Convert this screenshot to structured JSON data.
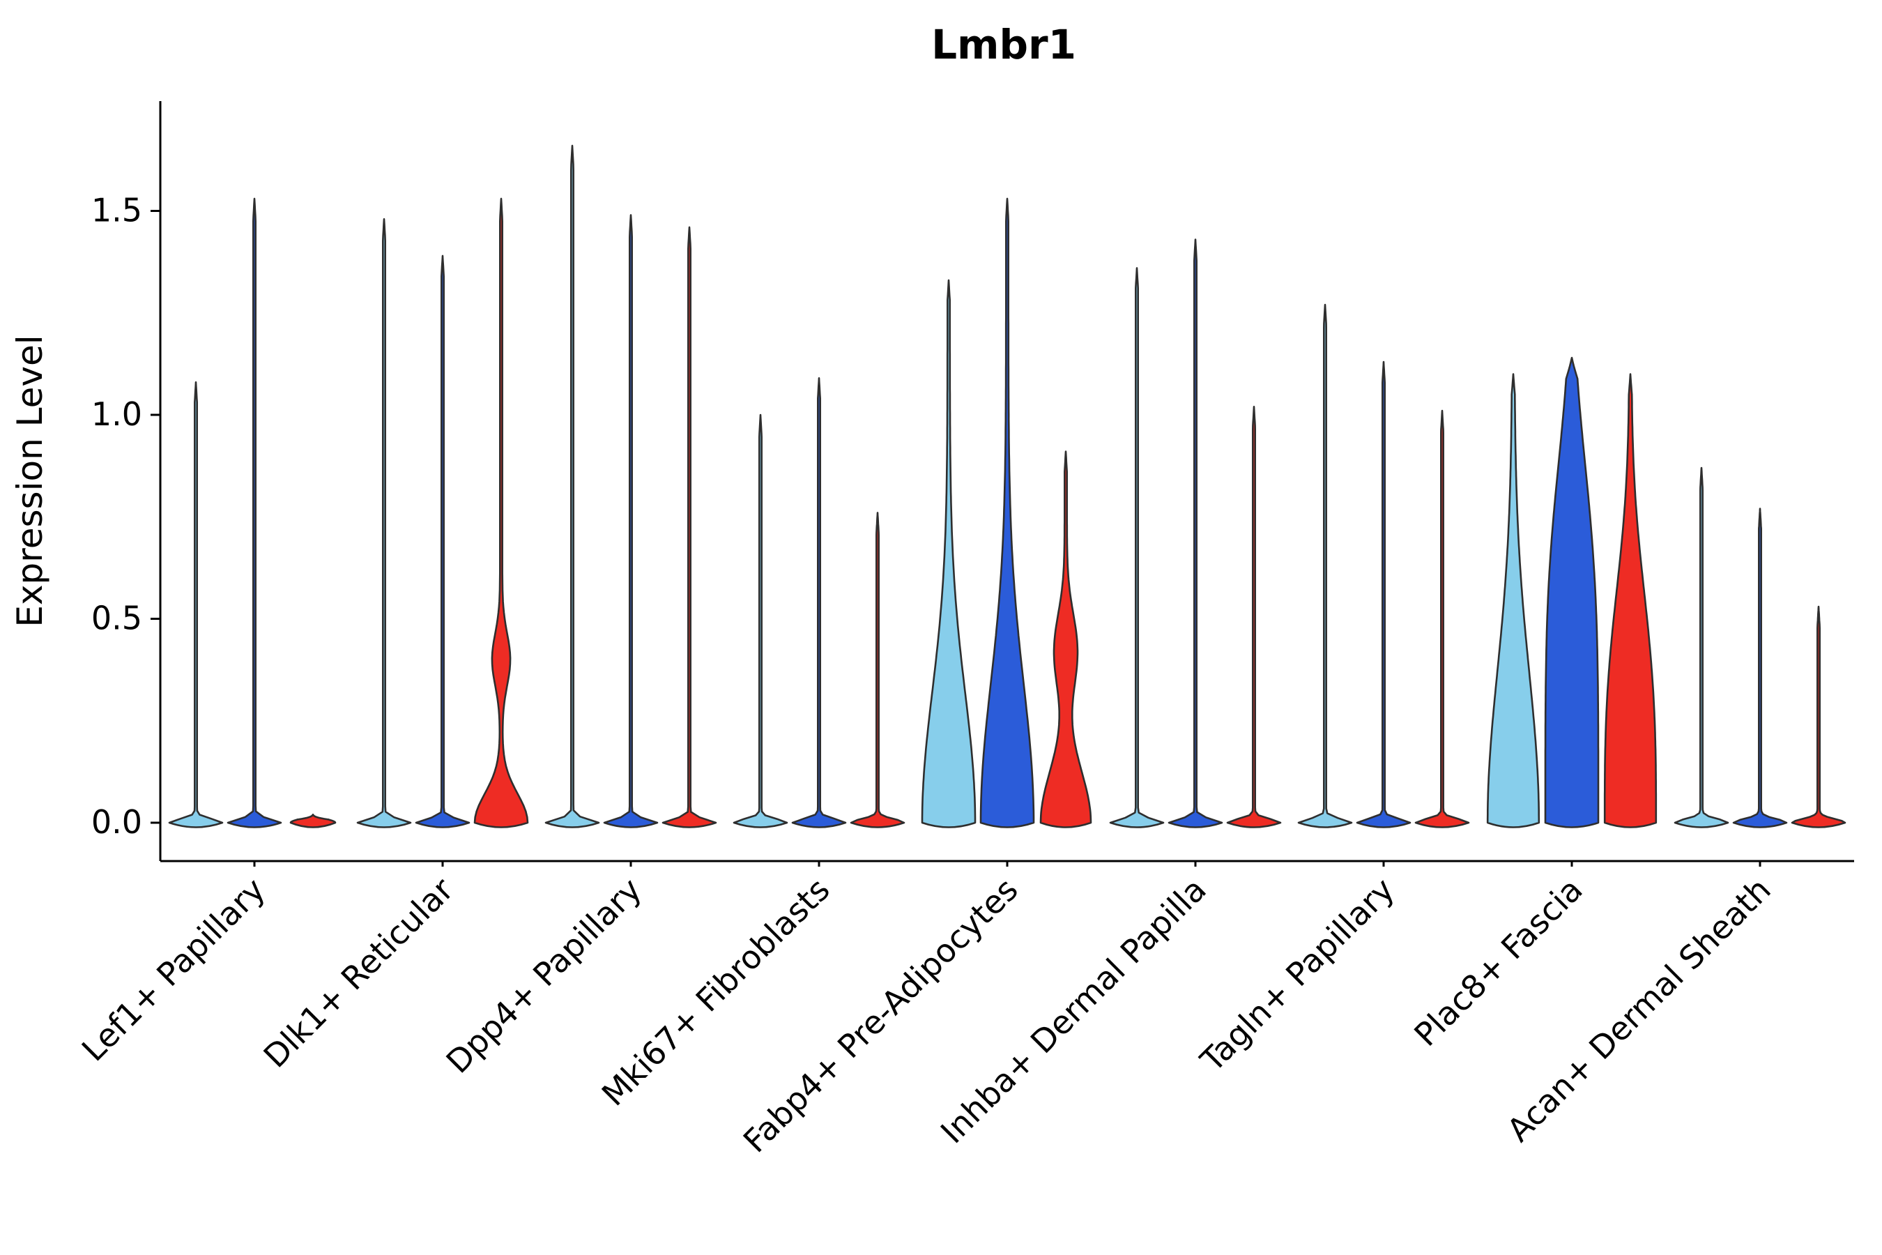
{
  "chart_data": {
    "type": "violin",
    "title": "Lmbr1",
    "ylabel": "Expression Level",
    "xlabel": "",
    "yticks": [
      "0.0",
      "0.5",
      "1.0",
      "1.5"
    ],
    "ytick_values": [
      0,
      0.5,
      1,
      1.5
    ],
    "ylim": [
      -0.07,
      1.77
    ],
    "grid": false,
    "legend": "none",
    "group_colors": [
      "#87CEEB",
      "#2B5CD9",
      "#EE2C24"
    ],
    "outline_color": "#2E2E2E",
    "spine_color": "#000000",
    "categories": [
      "Lef1+ Papillary",
      "Dlk1+ Reticular",
      "Dpp4+ Papillary",
      "Mki67+ Fibroblasts",
      "Fabp4+ Pre-Adipocytes",
      "Inhba+ Dermal Papilla",
      "Tagln+ Papillary",
      "Plac8+ Fascia",
      "Acan+ Dermal Sheath"
    ],
    "violins": [
      {
        "category": "Lef1+ Papillary",
        "cells": [
          {
            "group": 0,
            "max": 1.08,
            "w": 0.95,
            "d": 0.013,
            "p": 2,
            "stem": 1.7
          },
          {
            "group": 1,
            "max": 1.53,
            "w": 0.95,
            "d": 0.013,
            "p": 2,
            "stem": 1.7
          },
          {
            "group": 2,
            "max": 0.02,
            "w": 0.8,
            "d": 0.013,
            "p": 2,
            "stem": 0
          }
        ]
      },
      {
        "category": "Dlk1+ Reticular",
        "cells": [
          {
            "group": 0,
            "max": 1.48,
            "w": 0.95,
            "d": 0.013,
            "p": 2,
            "stem": 1.7
          },
          {
            "group": 1,
            "max": 1.39,
            "w": 0.95,
            "d": 0.013,
            "p": 2,
            "stem": 1.7
          },
          {
            "group": 2,
            "max": 1.53,
            "w": 0.95,
            "d": 0.1,
            "p": 2,
            "stem": 1.7,
            "bump": [
              0.4,
              0.09,
              0.3
            ]
          }
        ]
      },
      {
        "category": "Dpp4+ Papillary",
        "cells": [
          {
            "group": 0,
            "max": 1.66,
            "w": 0.95,
            "d": 0.013,
            "p": 2,
            "stem": 1.7
          },
          {
            "group": 1,
            "max": 1.49,
            "w": 0.95,
            "d": 0.013,
            "p": 2,
            "stem": 1.7
          },
          {
            "group": 2,
            "max": 1.46,
            "w": 0.95,
            "d": 0.013,
            "p": 2,
            "stem": 1.7
          }
        ]
      },
      {
        "category": "Mki67+ Fibroblasts",
        "cells": [
          {
            "group": 0,
            "max": 1.0,
            "w": 0.95,
            "d": 0.013,
            "p": 2,
            "stem": 1.7
          },
          {
            "group": 1,
            "max": 1.09,
            "w": 0.95,
            "d": 0.013,
            "p": 2,
            "stem": 1.7
          },
          {
            "group": 2,
            "max": 0.76,
            "w": 0.95,
            "d": 0.013,
            "p": 2,
            "stem": 1.7
          }
        ]
      },
      {
        "category": "Fabp4+ Pre-Adipocytes",
        "cells": [
          {
            "group": 0,
            "max": 1.33,
            "w": 0.95,
            "d": 0.45,
            "p": 2,
            "stem": 1.7
          },
          {
            "group": 1,
            "max": 1.53,
            "w": 0.95,
            "d": 0.48,
            "p": 2,
            "stem": 1.7
          },
          {
            "group": 2,
            "max": 0.91,
            "w": 0.9,
            "d": 0.18,
            "p": 2,
            "stem": 1.7,
            "bump": [
              0.42,
              0.13,
              0.42
            ]
          }
        ]
      },
      {
        "category": "Inhba+ Dermal Papilla",
        "cells": [
          {
            "group": 0,
            "max": 1.36,
            "w": 0.95,
            "d": 0.013,
            "p": 2,
            "stem": 1.7
          },
          {
            "group": 1,
            "max": 1.43,
            "w": 0.95,
            "d": 0.013,
            "p": 2,
            "stem": 1.7
          },
          {
            "group": 2,
            "max": 1.02,
            "w": 0.95,
            "d": 0.013,
            "p": 2,
            "stem": 1.7
          }
        ]
      },
      {
        "category": "Tagln+ Papillary",
        "cells": [
          {
            "group": 0,
            "max": 1.27,
            "w": 0.95,
            "d": 0.013,
            "p": 2,
            "stem": 1.7
          },
          {
            "group": 1,
            "max": 1.13,
            "w": 0.95,
            "d": 0.013,
            "p": 2,
            "stem": 1.7
          },
          {
            "group": 2,
            "max": 1.01,
            "w": 0.95,
            "d": 0.013,
            "p": 2,
            "stem": 1.7
          }
        ]
      },
      {
        "category": "Plac8+ Fascia",
        "cells": [
          {
            "group": 0,
            "max": 1.1,
            "w": 0.92,
            "d": 0.52,
            "p": 2,
            "stem": 1.7
          },
          {
            "group": 1,
            "max": 1.14,
            "w": 0.95,
            "d": 0.95,
            "p": 4,
            "stem": 1.7
          },
          {
            "group": 2,
            "max": 1.1,
            "w": 0.92,
            "d": 0.65,
            "p": 3,
            "stem": 1.7
          }
        ]
      },
      {
        "category": "Acan+ Dermal Sheath",
        "cells": [
          {
            "group": 0,
            "max": 0.87,
            "w": 0.95,
            "d": 0.013,
            "p": 2,
            "stem": 1.7
          },
          {
            "group": 1,
            "max": 0.77,
            "w": 0.95,
            "d": 0.013,
            "p": 2,
            "stem": 1.7
          },
          {
            "group": 2,
            "max": 0.53,
            "w": 0.95,
            "d": 0.013,
            "p": 2,
            "stem": 1.7
          }
        ]
      }
    ]
  }
}
